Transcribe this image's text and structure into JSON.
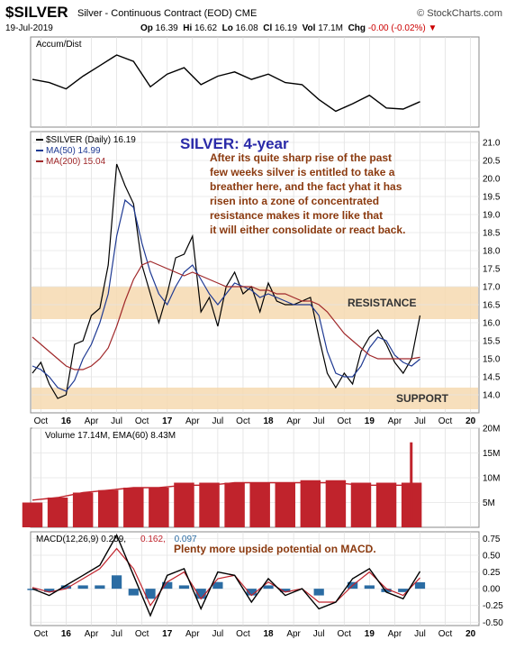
{
  "header": {
    "symbol": "$SILVER",
    "description": "Silver - Continuous Contract (EOD)",
    "exchange": "CME",
    "source": "© StockCharts.com",
    "date": "19-Jul-2019",
    "open_label": "Op",
    "open": "16.39",
    "high_label": "Hi",
    "high": "16.62",
    "low_label": "Lo",
    "low": "16.08",
    "close_label": "Cl",
    "close": "16.19",
    "volume_label": "Vol",
    "volume": "17.1M",
    "change_label": "Chg",
    "change": "-0.00 (-0.02%)"
  },
  "colors": {
    "price": "#000000",
    "ma50": "#1f3a93",
    "ma200": "#a0282a",
    "band": "#f6d9b0",
    "annotation": "#8b3a0f",
    "title": "#2a2aa8",
    "volume_bar": "#c0232c",
    "macd_hist": "#2b6ca3",
    "macd_signal": "#c0232c"
  },
  "x_labels": [
    "Oct",
    "16",
    "Apr",
    "Jul",
    "Oct",
    "17",
    "Apr",
    "Jul",
    "Oct",
    "18",
    "Apr",
    "Jul",
    "Oct",
    "19",
    "Apr",
    "Jul",
    "Oct",
    "20"
  ],
  "chart_data": [
    {
      "type": "line",
      "panel": "Accum/Dist",
      "legend": "Accum/Dist",
      "y_axis": "none",
      "x": [
        "2015-09",
        "2015-11",
        "2016-01",
        "2016-03",
        "2016-05",
        "2016-07",
        "2016-09",
        "2016-11",
        "2017-01",
        "2017-03",
        "2017-05",
        "2017-07",
        "2017-09",
        "2017-11",
        "2018-01",
        "2018-03",
        "2018-05",
        "2018-07",
        "2018-09",
        "2018-11",
        "2019-01",
        "2019-03",
        "2019-05",
        "2019-07"
      ],
      "values": [
        55,
        52,
        46,
        58,
        68,
        78,
        72,
        48,
        60,
        66,
        50,
        58,
        62,
        55,
        60,
        52,
        50,
        36,
        25,
        32,
        40,
        28,
        27,
        34
      ]
    },
    {
      "type": "line",
      "panel": "price",
      "legend": [
        {
          "name": "$SILVER (Daily) 16.19"
        },
        {
          "name": "MA(50) 14.99"
        },
        {
          "name": "MA(200) 15.04"
        }
      ],
      "ylim": [
        13.5,
        21.3
      ],
      "yticks": [
        "21.0",
        "20.5",
        "20.0",
        "19.5",
        "19.0",
        "18.5",
        "18.0",
        "17.5",
        "17.0",
        "16.5",
        "16.0",
        "15.5",
        "15.0",
        "14.5",
        "14.0"
      ],
      "x": [
        "2015-09",
        "2015-10",
        "2015-11",
        "2015-12",
        "2016-01",
        "2016-02",
        "2016-03",
        "2016-04",
        "2016-05",
        "2016-06",
        "2016-07",
        "2016-08",
        "2016-09",
        "2016-10",
        "2016-11",
        "2016-12",
        "2017-01",
        "2017-02",
        "2017-03",
        "2017-04",
        "2017-05",
        "2017-06",
        "2017-07",
        "2017-08",
        "2017-09",
        "2017-10",
        "2017-11",
        "2017-12",
        "2018-01",
        "2018-02",
        "2018-03",
        "2018-04",
        "2018-05",
        "2018-06",
        "2018-07",
        "2018-08",
        "2018-09",
        "2018-10",
        "2018-11",
        "2018-12",
        "2019-01",
        "2019-02",
        "2019-03",
        "2019-04",
        "2019-05",
        "2019-06",
        "2019-07"
      ],
      "series": [
        {
          "name": "$SILVER",
          "values": [
            14.6,
            14.9,
            14.3,
            13.9,
            14.0,
            15.4,
            15.5,
            16.2,
            16.4,
            17.6,
            20.4,
            19.8,
            19.3,
            17.6,
            16.8,
            16.0,
            16.8,
            17.8,
            17.9,
            18.4,
            16.3,
            16.7,
            15.9,
            17.0,
            17.4,
            16.8,
            17.0,
            16.3,
            17.1,
            16.6,
            16.5,
            16.5,
            16.6,
            16.7,
            15.6,
            14.6,
            14.2,
            14.6,
            14.3,
            15.2,
            15.6,
            15.8,
            15.4,
            14.9,
            14.6,
            15.0,
            16.2
          ]
        },
        {
          "name": "MA(50)",
          "values": [
            14.8,
            14.7,
            14.5,
            14.2,
            14.1,
            14.4,
            15.0,
            15.4,
            16.0,
            16.8,
            18.4,
            19.4,
            19.2,
            18.2,
            17.4,
            16.8,
            16.5,
            17.0,
            17.4,
            17.6,
            17.2,
            16.8,
            16.5,
            16.8,
            17.1,
            17.0,
            16.9,
            16.7,
            16.8,
            16.7,
            16.6,
            16.5,
            16.5,
            16.5,
            16.2,
            15.2,
            14.6,
            14.5,
            14.5,
            14.8,
            15.3,
            15.6,
            15.5,
            15.1,
            14.9,
            14.8,
            14.99
          ]
        },
        {
          "name": "MA(200)",
          "values": [
            15.6,
            15.4,
            15.2,
            15.0,
            14.8,
            14.7,
            14.7,
            14.8,
            15.0,
            15.3,
            15.9,
            16.6,
            17.2,
            17.6,
            17.7,
            17.6,
            17.5,
            17.4,
            17.3,
            17.4,
            17.3,
            17.2,
            17.1,
            17.0,
            17.0,
            17.0,
            17.0,
            16.9,
            16.9,
            16.8,
            16.8,
            16.7,
            16.6,
            16.6,
            16.5,
            16.3,
            16.0,
            15.7,
            15.5,
            15.3,
            15.1,
            15.0,
            15.0,
            15.0,
            15.0,
            15.0,
            15.04
          ]
        }
      ],
      "bands": [
        {
          "label": "RESISTANCE",
          "from": 16.1,
          "to": 17.0
        },
        {
          "label": "SUPPORT",
          "from": 13.6,
          "to": 14.2
        }
      ],
      "title": "SILVER: 4-year",
      "annotation_lines": [
        "After its quite sharp rise of the past",
        "few weeks silver is entitled to take a",
        "breather here, and the fact yhat it has",
        "risen into a zone of concentrated",
        "resistance makes it more like that",
        "it will either consolidate or react back."
      ]
    },
    {
      "type": "bar",
      "panel": "volume",
      "legend": "Volume 17.14M, EMA(60) 8.43M",
      "ylim": [
        0,
        20
      ],
      "yticks": [
        "20M",
        "15M",
        "10M",
        "5M"
      ],
      "x": [
        "2015-09",
        "2015-12",
        "2016-03",
        "2016-06",
        "2016-09",
        "2016-12",
        "2017-03",
        "2017-06",
        "2017-09",
        "2017-12",
        "2018-03",
        "2018-06",
        "2018-09",
        "2018-12",
        "2019-03",
        "2019-06",
        "2019-07"
      ],
      "values": [
        5,
        6,
        7,
        7.5,
        8,
        8,
        9,
        9,
        9,
        9,
        9,
        9.5,
        9.5,
        9,
        9,
        9,
        17.14
      ],
      "ema": [
        5.5,
        6,
        7,
        7.5,
        8,
        8,
        8.5,
        8.5,
        9,
        9,
        9,
        9,
        9,
        8.5,
        8.5,
        8.5,
        8.43
      ]
    },
    {
      "type": "line",
      "panel": "MACD",
      "legend": [
        {
          "name": "MACD(12,26,9) 0.259"
        },
        {
          "name": "0.162"
        },
        {
          "name": "0.097"
        }
      ],
      "ylim": [
        -0.55,
        0.85
      ],
      "yticks": [
        "0.75",
        "0.50",
        "0.25",
        "0.00",
        "-0.25",
        "-0.50"
      ],
      "x": [
        "2015-09",
        "2015-11",
        "2016-01",
        "2016-03",
        "2016-05",
        "2016-07",
        "2016-09",
        "2016-11",
        "2017-01",
        "2017-03",
        "2017-05",
        "2017-07",
        "2017-09",
        "2017-11",
        "2018-01",
        "2018-03",
        "2018-05",
        "2018-07",
        "2018-09",
        "2018-11",
        "2019-01",
        "2019-03",
        "2019-05",
        "2019-07"
      ],
      "series": [
        {
          "name": "MACD",
          "values": [
            0.0,
            -0.1,
            0.05,
            0.2,
            0.35,
            0.8,
            0.2,
            -0.4,
            0.2,
            0.3,
            -0.3,
            0.25,
            0.2,
            -0.2,
            0.15,
            -0.1,
            0.0,
            -0.3,
            -0.2,
            0.15,
            0.3,
            -0.05,
            -0.15,
            0.259
          ]
        },
        {
          "name": "Signal",
          "values": [
            0.02,
            -0.05,
            0.0,
            0.15,
            0.3,
            0.6,
            0.3,
            -0.25,
            0.1,
            0.25,
            -0.15,
            0.15,
            0.2,
            -0.1,
            0.1,
            -0.05,
            0.0,
            -0.2,
            -0.2,
            0.05,
            0.25,
            0.0,
            -0.1,
            0.162
          ]
        },
        {
          "name": "Histogram",
          "values": [
            -0.02,
            -0.05,
            0.05,
            0.05,
            0.05,
            0.2,
            -0.1,
            -0.15,
            0.1,
            0.05,
            -0.15,
            0.1,
            0.0,
            -0.1,
            0.05,
            -0.05,
            0.0,
            -0.1,
            0.0,
            0.1,
            0.05,
            -0.05,
            -0.05,
            0.097
          ]
        }
      ],
      "annotation": "Plenty more upside potential on MACD."
    }
  ]
}
